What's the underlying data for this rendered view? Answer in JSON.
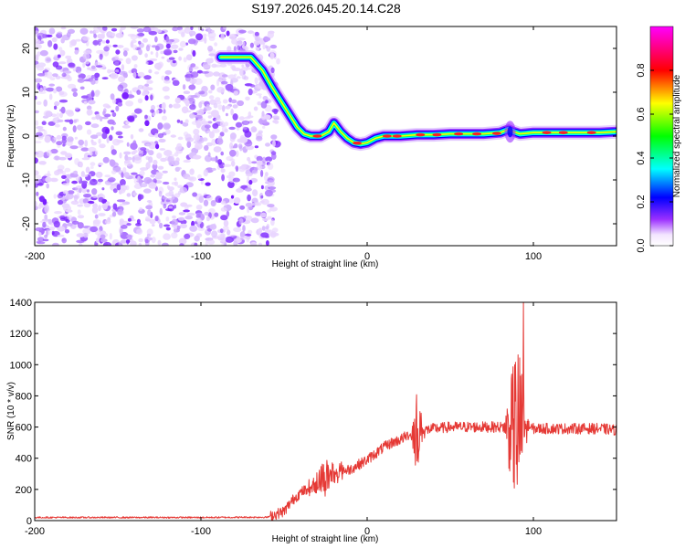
{
  "title": "S197.2026.045.20.14.C28",
  "colors": {
    "snr_line": "#e53935",
    "frame": "#000000",
    "background": "#ffffff"
  },
  "chart_data": [
    {
      "type": "heatmap",
      "name": "spectrogram",
      "xlabel": "Height of straight line (km)",
      "ylabel": "Frequency (Hz)",
      "xlim": [
        -200,
        150
      ],
      "ylim": [
        -25,
        25
      ],
      "xticks": [
        -200,
        -100,
        0,
        100
      ],
      "yticks": [
        -20,
        -10,
        0,
        10,
        20
      ],
      "colorbar": {
        "label": "Normalized spectral amplitude",
        "range": [
          0,
          1
        ],
        "ticks": [
          "0.0",
          "0.2",
          "0.4",
          "0.6",
          "0.8"
        ],
        "tick_values": [
          0.0,
          0.2,
          0.4,
          0.6,
          0.8
        ]
      },
      "noise_region_x": [
        -200,
        -55
      ],
      "ridge": [
        [
          -88,
          18
        ],
        [
          -80,
          18
        ],
        [
          -70,
          18
        ],
        [
          -63,
          15
        ],
        [
          -57,
          11
        ],
        [
          -52,
          8
        ],
        [
          -47,
          5
        ],
        [
          -42,
          2
        ],
        [
          -38,
          0.5
        ],
        [
          -34,
          0
        ],
        [
          -28,
          0
        ],
        [
          -23,
          1
        ],
        [
          -20,
          3
        ],
        [
          -16,
          1
        ],
        [
          -12,
          -0.5
        ],
        [
          -8,
          -1.5
        ],
        [
          -4,
          -1.8
        ],
        [
          0,
          -1.5
        ],
        [
          5,
          -0.5
        ],
        [
          10,
          0
        ],
        [
          20,
          0
        ],
        [
          30,
          0.3
        ],
        [
          40,
          0.3
        ],
        [
          50,
          0.5
        ],
        [
          60,
          0.5
        ],
        [
          70,
          0.5
        ],
        [
          80,
          0.8
        ],
        [
          85,
          1.5
        ],
        [
          88,
          1
        ],
        [
          92,
          0.5
        ],
        [
          100,
          0.8
        ],
        [
          110,
          0.8
        ],
        [
          120,
          0.8
        ],
        [
          130,
          0.8
        ],
        [
          140,
          0.8
        ],
        [
          150,
          1
        ]
      ]
    },
    {
      "type": "line",
      "name": "snr",
      "xlabel": "Height of straight line (km)",
      "ylabel": "SNR (10 * v/v)",
      "xlim": [
        -200,
        150
      ],
      "ylim": [
        0,
        1400
      ],
      "xticks": [
        -200,
        -100,
        0,
        100
      ],
      "yticks": [
        0,
        200,
        400,
        600,
        800,
        1000,
        1200,
        1400
      ],
      "envelope": [
        [
          -200,
          20
        ],
        [
          -150,
          20
        ],
        [
          -100,
          20
        ],
        [
          -60,
          22
        ],
        [
          -50,
          60
        ],
        [
          -45,
          130
        ],
        [
          -40,
          180
        ],
        [
          -35,
          210
        ],
        [
          -30,
          250
        ],
        [
          -25,
          280
        ],
        [
          -20,
          300
        ],
        [
          -15,
          320
        ],
        [
          -10,
          330
        ],
        [
          -5,
          360
        ],
        [
          0,
          390
        ],
        [
          5,
          430
        ],
        [
          10,
          470
        ],
        [
          15,
          500
        ],
        [
          20,
          520
        ],
        [
          25,
          550
        ],
        [
          30,
          570
        ],
        [
          40,
          590
        ],
        [
          50,
          600
        ],
        [
          60,
          600
        ],
        [
          70,
          600
        ],
        [
          80,
          600
        ],
        [
          90,
          600
        ],
        [
          100,
          590
        ],
        [
          110,
          590
        ],
        [
          120,
          590
        ],
        [
          130,
          590
        ],
        [
          140,
          590
        ],
        [
          150,
          580
        ]
      ],
      "bursts": [
        {
          "x": [
            25,
            35
          ],
          "amplitude": 250
        },
        {
          "x": [
            -38,
            -12
          ],
          "amplitude": 120
        },
        {
          "x": [
            82,
            98
          ],
          "amplitude": 600
        }
      ],
      "peak": {
        "x": 94,
        "y": 1400
      }
    }
  ]
}
